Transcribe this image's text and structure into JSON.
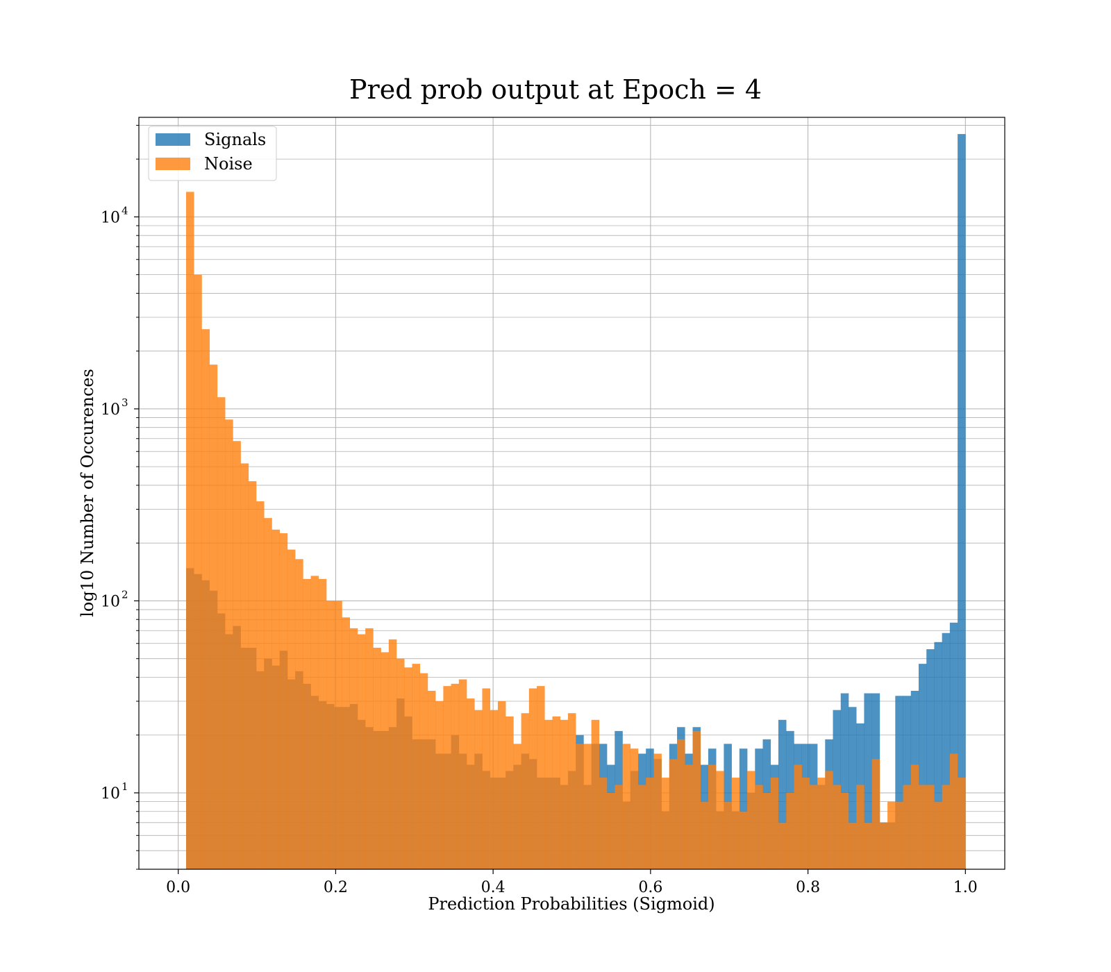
{
  "chart_data": {
    "type": "bar",
    "title": "Pred prob output at Epoch = 4",
    "xlabel": "Prediction Probabilities (Sigmoid)",
    "ylabel": "log10 Number of Occurences",
    "xlim": [
      -0.05,
      1.05
    ],
    "ylim": [
      4,
      33000
    ],
    "yscale": "log",
    "grid": true,
    "legend_position": "top-left",
    "x_ticks": [
      "0.0",
      "0.2",
      "0.4",
      "0.6",
      "0.8",
      "1.0"
    ],
    "x_tick_values": [
      0.0,
      0.2,
      0.4,
      0.6,
      0.8,
      1.0
    ],
    "y_ticks": [
      {
        "base": "10",
        "exp": "1",
        "value": 10
      },
      {
        "base": "10",
        "exp": "2",
        "value": 100
      },
      {
        "base": "10",
        "exp": "3",
        "value": 1000
      },
      {
        "base": "10",
        "exp": "4",
        "value": 10000
      }
    ],
    "bin_range": [
      0.01,
      1.0
    ],
    "bins": 100,
    "series": [
      {
        "name": "Signals",
        "color": "#1f77b4",
        "values": [
          148,
          138,
          128,
          113,
          86,
          67,
          74,
          57,
          57,
          43,
          50,
          46,
          55,
          39,
          43,
          37,
          32,
          30,
          29,
          28,
          28,
          29,
          24,
          22,
          21,
          21,
          22,
          31,
          25,
          19,
          19,
          19,
          16,
          16,
          20,
          16,
          14,
          16,
          13,
          12,
          12,
          13,
          14,
          16,
          15,
          12,
          12,
          12,
          11,
          13,
          20,
          11,
          18,
          18,
          14,
          21,
          9,
          13,
          16,
          17,
          15,
          8,
          18,
          22,
          16,
          22,
          14,
          17,
          8,
          18,
          8,
          17,
          10,
          17,
          19,
          14,
          24,
          21,
          18,
          18,
          18,
          11,
          19,
          27,
          33,
          28,
          23,
          33,
          33,
          7,
          7,
          32,
          32,
          34,
          47,
          56,
          61,
          68,
          77,
          27000
        ]
      },
      {
        "name": "Noise",
        "color": "#ff7f0e",
        "values": [
          13500,
          5000,
          2600,
          1700,
          1150,
          880,
          680,
          520,
          420,
          330,
          270,
          235,
          225,
          185,
          165,
          130,
          135,
          130,
          100,
          100,
          82,
          72,
          67,
          72,
          57,
          54,
          63,
          50,
          45,
          47,
          42,
          34,
          30,
          36,
          37,
          39,
          31,
          27,
          35,
          27,
          30,
          25,
          18,
          26,
          35,
          36,
          24,
          25,
          24,
          26,
          18,
          18,
          24,
          12,
          10,
          11,
          18,
          17,
          11,
          12,
          16,
          12,
          15,
          19,
          14,
          21,
          9,
          14,
          13,
          9,
          12,
          8,
          13,
          11,
          10,
          12,
          7,
          10,
          14,
          12,
          11,
          12,
          13,
          11,
          10,
          7,
          11,
          7,
          15,
          7,
          9,
          9,
          11,
          14,
          11,
          11,
          9,
          11,
          16,
          12
        ]
      }
    ]
  }
}
